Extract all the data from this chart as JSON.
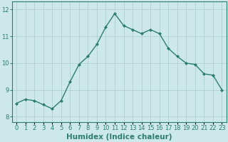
{
  "x": [
    0,
    1,
    2,
    3,
    4,
    5,
    6,
    7,
    8,
    9,
    10,
    11,
    12,
    13,
    14,
    15,
    16,
    17,
    18,
    19,
    20,
    21,
    22,
    23
  ],
  "y": [
    8.5,
    8.65,
    8.6,
    8.45,
    8.3,
    8.6,
    9.3,
    9.95,
    10.25,
    10.7,
    11.35,
    11.85,
    11.4,
    11.25,
    11.1,
    11.25,
    11.1,
    10.55,
    10.25,
    10.0,
    9.95,
    9.6,
    9.55,
    9.0
  ],
  "line_color": "#2d7d6e",
  "marker": "D",
  "marker_size": 2.0,
  "bg_color": "#cce8e8",
  "grid_color": "#b0d0d0",
  "xlabel": "Humidex (Indice chaleur)",
  "xlabel_fontsize": 7.5,
  "xlim": [
    -0.5,
    23.5
  ],
  "ylim": [
    7.8,
    12.3
  ],
  "yticks": [
    8,
    9,
    10,
    11,
    12
  ],
  "xtick_labels": [
    "0",
    "1",
    "2",
    "3",
    "4",
    "5",
    "6",
    "7",
    "8",
    "9",
    "10",
    "11",
    "12",
    "13",
    "14",
    "15",
    "16",
    "17",
    "18",
    "19",
    "20",
    "21",
    "22",
    "23"
  ],
  "tick_fontsize": 6.0,
  "spine_color": "#2d7d6e",
  "linewidth": 1.0
}
